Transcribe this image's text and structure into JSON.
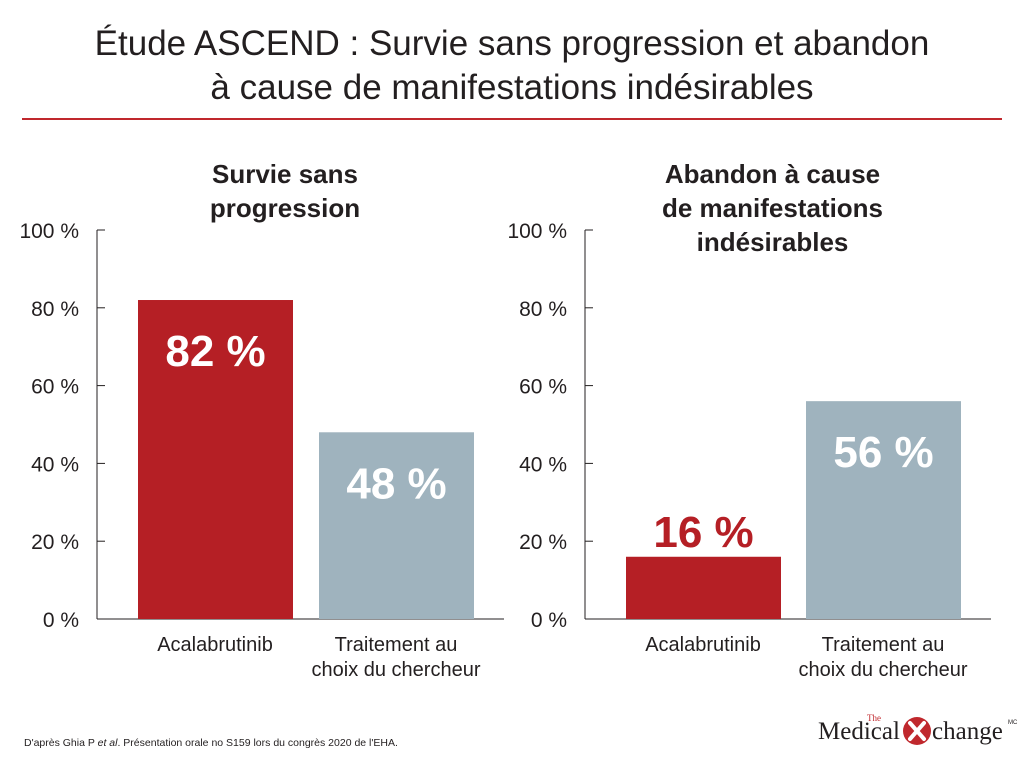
{
  "title_line1": "Étude ASCEND : Survie sans progression et abandon",
  "title_line2": "à cause de manifestations indésirables",
  "colors": {
    "accent": "#c0282d",
    "acalabrutinib": "#b51f25",
    "comparator": "#9fb3be",
    "axis": "#231f20"
  },
  "chart_data": [
    {
      "type": "bar",
      "title_lines": [
        "Survie sans",
        "progression"
      ],
      "categories": [
        [
          "Acalabrutinib"
        ],
        [
          "Traitement au",
          "choix du chercheur"
        ]
      ],
      "values": [
        82,
        48
      ],
      "data_labels": [
        "82 %",
        "48 %"
      ],
      "ylim": [
        0,
        100
      ],
      "yticks": [
        0,
        20,
        40,
        60,
        80,
        100
      ],
      "ytick_labels": [
        "0 %",
        "20 %",
        "40 %",
        "60 %",
        "80 %",
        "100 %"
      ],
      "grid": false
    },
    {
      "type": "bar",
      "title_lines": [
        "Abandon à cause",
        "de manifestations",
        "indésirables"
      ],
      "categories": [
        [
          "Acalabrutinib"
        ],
        [
          "Traitement au",
          "choix du chercheur"
        ]
      ],
      "values": [
        16,
        56
      ],
      "data_labels": [
        "16 %",
        "56 %"
      ],
      "ylim": [
        0,
        100
      ],
      "yticks": [
        0,
        20,
        40,
        60,
        80,
        100
      ],
      "ytick_labels": [
        "0 %",
        "20 %",
        "40 %",
        "60 %",
        "80 %",
        "100 %"
      ],
      "grid": false
    }
  ],
  "footnote_prefix": "D'après Ghia P ",
  "footnote_etal": "et al",
  "footnote_suffix": ". Présentation orale no S159 lors du congrès 2020 de l'EHA.",
  "logo": {
    "the": "The",
    "word1": "Medical",
    "word2": "change",
    "mark": "X",
    "tm": "MC"
  }
}
